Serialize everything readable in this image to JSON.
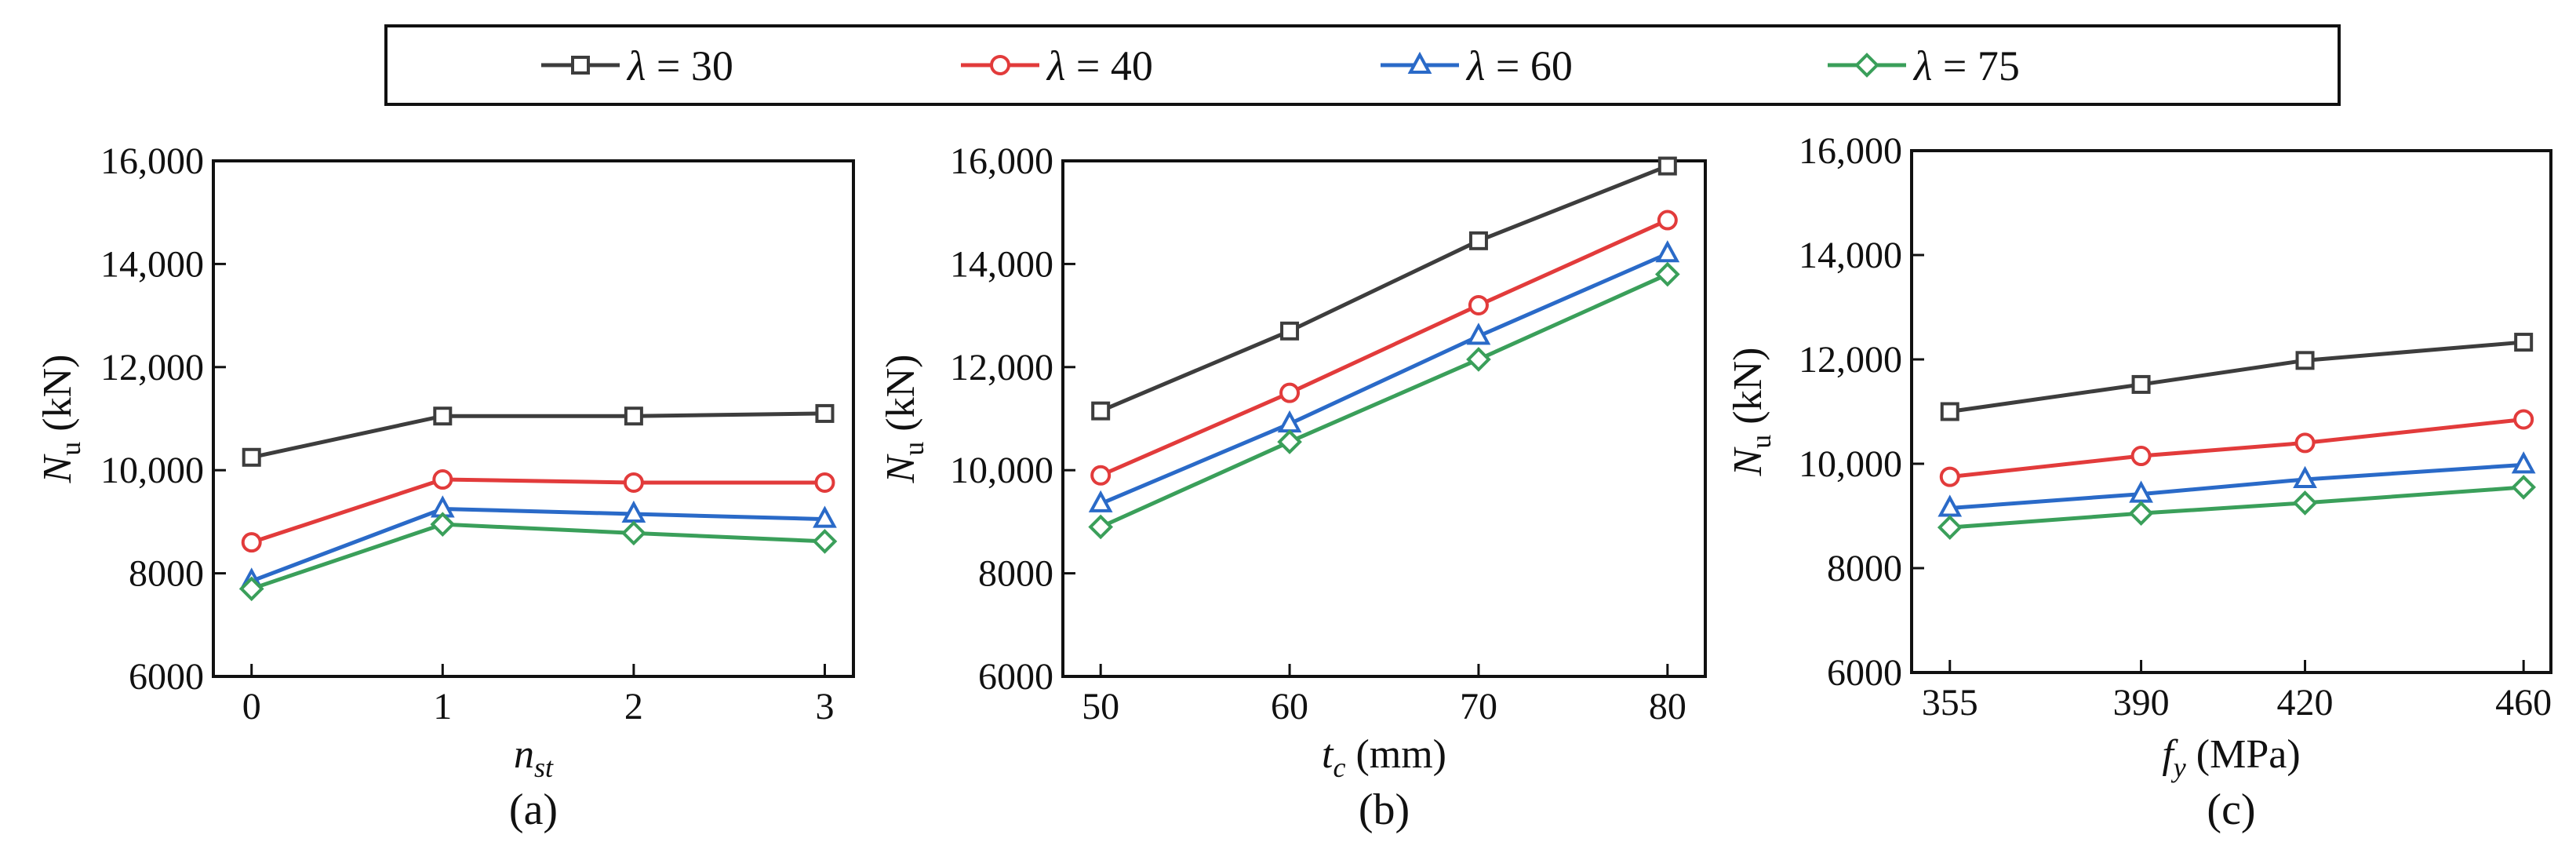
{
  "legend": {
    "entries": [
      {
        "symbol": "λ",
        "text": " = 30",
        "color": "#3d3d3d",
        "marker": "square"
      },
      {
        "symbol": "λ",
        "text": " = 40",
        "color": "#e23b3b",
        "marker": "circle"
      },
      {
        "symbol": "λ",
        "text": " = 60",
        "color": "#2a6ac8",
        "marker": "triangle"
      },
      {
        "symbol": "λ",
        "text": " = 75",
        "color": "#3a9f5a",
        "marker": "diamond"
      }
    ]
  },
  "chart_data": [
    {
      "type": "line",
      "panel": "(a)",
      "xlabel": {
        "main": "n",
        "sub": "st",
        "unit": ""
      },
      "ylabel": {
        "main": "N",
        "sub": "u",
        "unit": " (kN)"
      },
      "x": [
        0,
        1,
        2,
        3
      ],
      "xticks": [
        "0",
        "1",
        "2",
        "3"
      ],
      "xlim": [
        -0.2,
        3.15
      ],
      "ylim": [
        6000,
        16000
      ],
      "yticks": [
        6000,
        8000,
        10000,
        12000,
        14000,
        16000
      ],
      "ytick_labels": [
        "6000",
        "8000",
        "10,000",
        "12,000",
        "14,000",
        "16,000"
      ],
      "series": [
        {
          "name": "λ = 30",
          "values": [
            10250,
            11050,
            11050,
            11100
          ]
        },
        {
          "name": "λ = 40",
          "values": [
            8600,
            9820,
            9760,
            9760
          ]
        },
        {
          "name": "λ = 60",
          "values": [
            7850,
            9250,
            9150,
            9050
          ]
        },
        {
          "name": "λ = 75",
          "values": [
            7700,
            8950,
            8780,
            8620
          ]
        }
      ]
    },
    {
      "type": "line",
      "panel": "(b)",
      "xlabel": {
        "main": "t",
        "sub": "c",
        "unit": " (mm)"
      },
      "ylabel": {
        "main": "N",
        "sub": "u",
        "unit": " (kN)"
      },
      "x": [
        50,
        60,
        70,
        80
      ],
      "xticks": [
        "50",
        "60",
        "70",
        "80"
      ],
      "xlim": [
        48,
        82
      ],
      "ylim": [
        6000,
        16000
      ],
      "yticks": [
        6000,
        8000,
        10000,
        12000,
        14000,
        16000
      ],
      "ytick_labels": [
        "6000",
        "8000",
        "10,000",
        "12,000",
        "14,000",
        "16,000"
      ],
      "series": [
        {
          "name": "λ = 30",
          "values": [
            11150,
            12700,
            14450,
            15900
          ]
        },
        {
          "name": "λ = 40",
          "values": [
            9900,
            11500,
            13200,
            14850
          ]
        },
        {
          "name": "λ = 60",
          "values": [
            9350,
            10900,
            12600,
            14200
          ]
        },
        {
          "name": "λ = 75",
          "values": [
            8900,
            10550,
            12150,
            13800
          ]
        }
      ]
    },
    {
      "type": "line",
      "panel": "(c)",
      "xlabel": {
        "main": "f",
        "sub": "y",
        "unit": " (MPa)"
      },
      "ylabel": {
        "main": "N",
        "sub": "u",
        "unit": " (kN)"
      },
      "x": [
        355,
        390,
        420,
        460
      ],
      "xticks": [
        "355",
        "390",
        "420",
        "460"
      ],
      "xlim": [
        348,
        465
      ],
      "ylim": [
        6000,
        16000
      ],
      "yticks": [
        6000,
        8000,
        10000,
        12000,
        14000,
        16000
      ],
      "ytick_labels": [
        "6000",
        "8000",
        "10,000",
        "12,000",
        "14,000",
        "16,000"
      ],
      "series": [
        {
          "name": "λ = 30",
          "values": [
            11000,
            11520,
            11980,
            12330
          ]
        },
        {
          "name": "λ = 40",
          "values": [
            9750,
            10150,
            10400,
            10850
          ]
        },
        {
          "name": "λ = 60",
          "values": [
            9150,
            9420,
            9700,
            9980
          ]
        },
        {
          "name": "λ = 75",
          "values": [
            8780,
            9050,
            9250,
            9550
          ]
        }
      ]
    }
  ]
}
